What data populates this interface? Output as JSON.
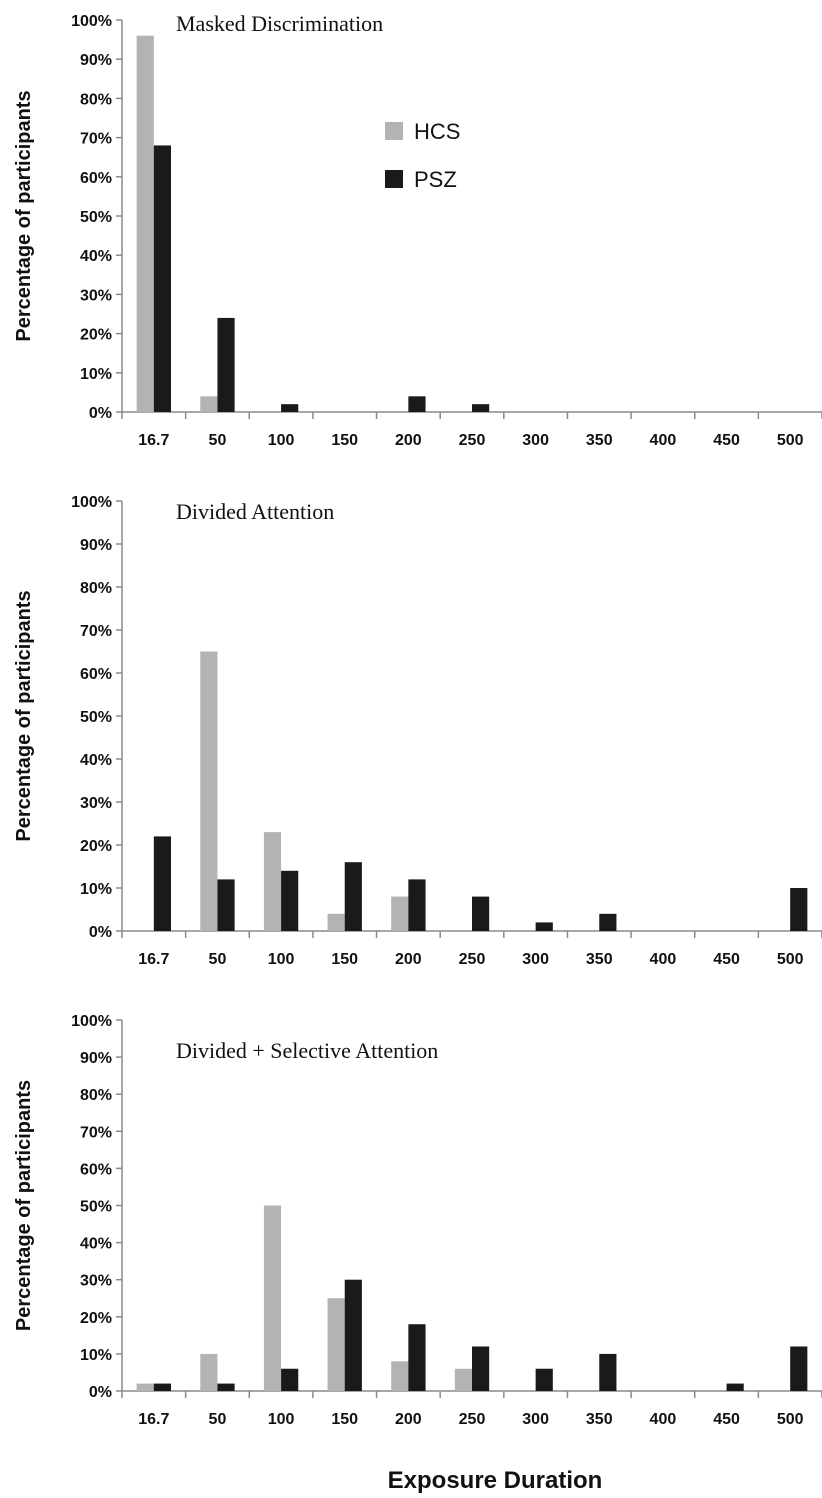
{
  "figure": {
    "xlabel": "Exposure Duration",
    "colors": {
      "HCS": "#b3b3b3",
      "PSZ": "#1a1a1a",
      "axis": "#8a8a8a"
    }
  },
  "chart_data": [
    {
      "type": "bar",
      "title": "Masked Discrimination",
      "ylabel": "Percentage of participants",
      "xlabel": "",
      "ylim": [
        0,
        100
      ],
      "yticks": [
        "0%",
        "10%",
        "20%",
        "30%",
        "40%",
        "50%",
        "60%",
        "70%",
        "80%",
        "90%",
        "100%"
      ],
      "legend": "top-center",
      "categories": [
        "16.7",
        "50",
        "100",
        "150",
        "200",
        "250",
        "300",
        "350",
        "400",
        "450",
        "500"
      ],
      "series": [
        {
          "name": "HCS",
          "values": [
            96,
            4,
            0,
            0,
            0,
            0,
            0,
            0,
            0,
            0,
            0
          ]
        },
        {
          "name": "PSZ",
          "values": [
            68,
            24,
            2,
            0,
            4,
            2,
            0,
            0,
            0,
            0,
            0
          ]
        }
      ]
    },
    {
      "type": "bar",
      "title": "Divided Attention",
      "ylabel": "Percentage of participants",
      "xlabel": "",
      "ylim": [
        0,
        100
      ],
      "yticks": [
        "0%",
        "10%",
        "20%",
        "30%",
        "40%",
        "50%",
        "60%",
        "70%",
        "80%",
        "90%",
        "100%"
      ],
      "categories": [
        "16.7",
        "50",
        "100",
        "150",
        "200",
        "250",
        "300",
        "350",
        "400",
        "450",
        "500"
      ],
      "series": [
        {
          "name": "HCS",
          "values": [
            0,
            65,
            23,
            4,
            8,
            0,
            0,
            0,
            0,
            0,
            0
          ]
        },
        {
          "name": "PSZ",
          "values": [
            22,
            12,
            14,
            16,
            12,
            8,
            2,
            4,
            0,
            0,
            10
          ]
        }
      ]
    },
    {
      "type": "bar",
      "title": "Divided + Selective  Attention",
      "ylabel": "Percentage of participants",
      "xlabel": "Exposure Duration",
      "ylim": [
        0,
        100
      ],
      "yticks": [
        "0%",
        "10%",
        "20%",
        "30%",
        "40%",
        "50%",
        "60%",
        "70%",
        "80%",
        "90%",
        "100%"
      ],
      "categories": [
        "16.7",
        "50",
        "100",
        "150",
        "200",
        "250",
        "300",
        "350",
        "400",
        "450",
        "500"
      ],
      "series": [
        {
          "name": "HCS",
          "values": [
            2,
            10,
            50,
            25,
            8,
            6,
            0,
            0,
            0,
            0,
            0
          ]
        },
        {
          "name": "PSZ",
          "values": [
            2,
            2,
            6,
            30,
            18,
            12,
            6,
            10,
            0,
            2,
            12
          ]
        }
      ]
    }
  ]
}
